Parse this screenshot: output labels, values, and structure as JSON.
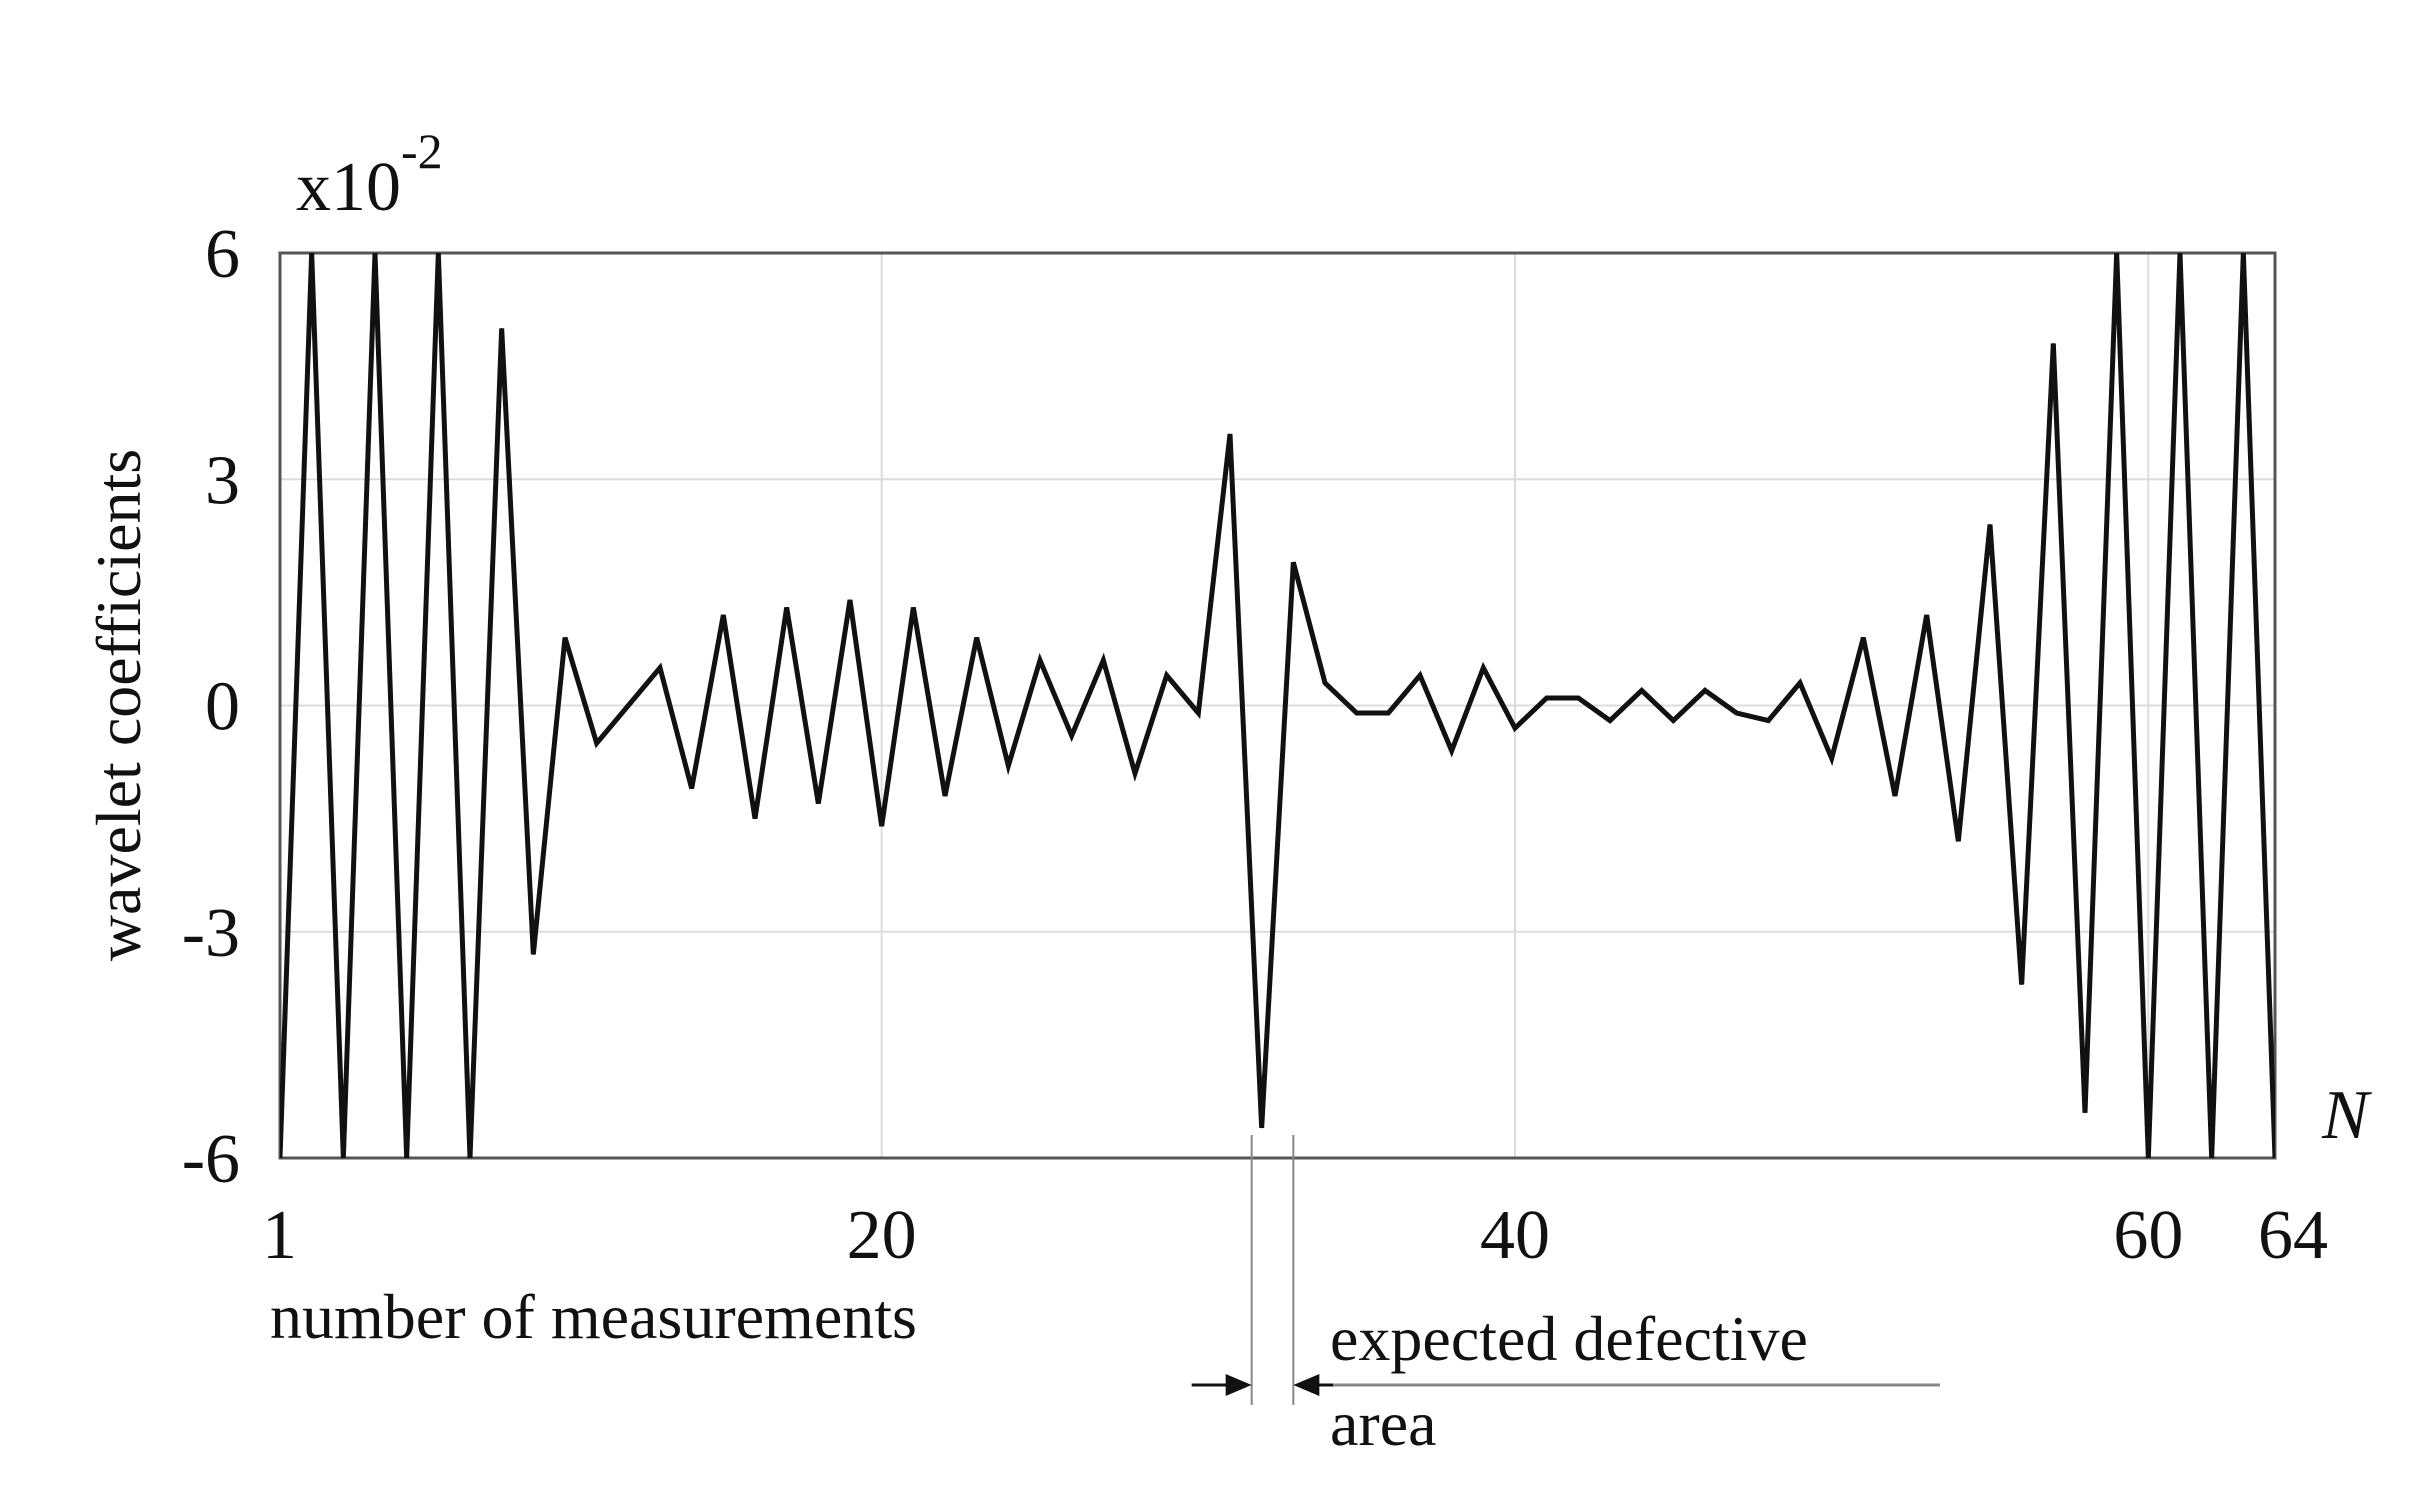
{
  "chart_data": {
    "type": "line",
    "title": "",
    "ylabel": "wavelet coefficients",
    "xlabel": "number of measurements",
    "x_axis_symbol": "N",
    "scale_multiplier": {
      "base": "x10",
      "exponent": "-2"
    },
    "xlim": [
      1,
      64
    ],
    "ylim": [
      -6,
      6
    ],
    "x_ticks": [
      1,
      20,
      40,
      60,
      64
    ],
    "y_ticks": [
      6,
      3,
      0,
      -3,
      -6
    ],
    "grid": true,
    "annotation": {
      "line1": "expected defective",
      "line2": "area",
      "x_range": [
        32,
        33
      ]
    },
    "series": [
      {
        "x": [
          1,
          2,
          3,
          4,
          5,
          6,
          7,
          8,
          9,
          10,
          11,
          12,
          13,
          14,
          15,
          16,
          17,
          18,
          19,
          20,
          21,
          22,
          23,
          24,
          25,
          26,
          27,
          28,
          29,
          30,
          31,
          32,
          33,
          34,
          35,
          36,
          37,
          38,
          39,
          40,
          41,
          42,
          43,
          44,
          45,
          46,
          47,
          48,
          49,
          50,
          51,
          52,
          53,
          54,
          55,
          56,
          57,
          58,
          59,
          60,
          61,
          62,
          63,
          64
        ],
        "values": [
          -6,
          6,
          -6,
          6,
          -6,
          6,
          -6,
          5.0,
          -3.3,
          0.9,
          -0.5,
          0.0,
          0.5,
          -1.1,
          1.2,
          -1.5,
          1.3,
          -1.3,
          1.4,
          -1.6,
          1.3,
          -1.2,
          0.9,
          -0.8,
          0.6,
          -0.4,
          0.6,
          -0.9,
          0.4,
          -0.1,
          3.6,
          -5.6,
          1.9,
          0.3,
          -0.1,
          -0.1,
          0.4,
          -0.6,
          0.5,
          -0.3,
          0.1,
          0.1,
          -0.2,
          0.2,
          -0.2,
          0.2,
          -0.1,
          -0.2,
          0.3,
          -0.7,
          0.9,
          -1.2,
          1.2,
          -1.8,
          2.4,
          -3.7,
          4.8,
          -5.4,
          6,
          -6,
          6,
          -6,
          6,
          -6
        ]
      }
    ]
  }
}
